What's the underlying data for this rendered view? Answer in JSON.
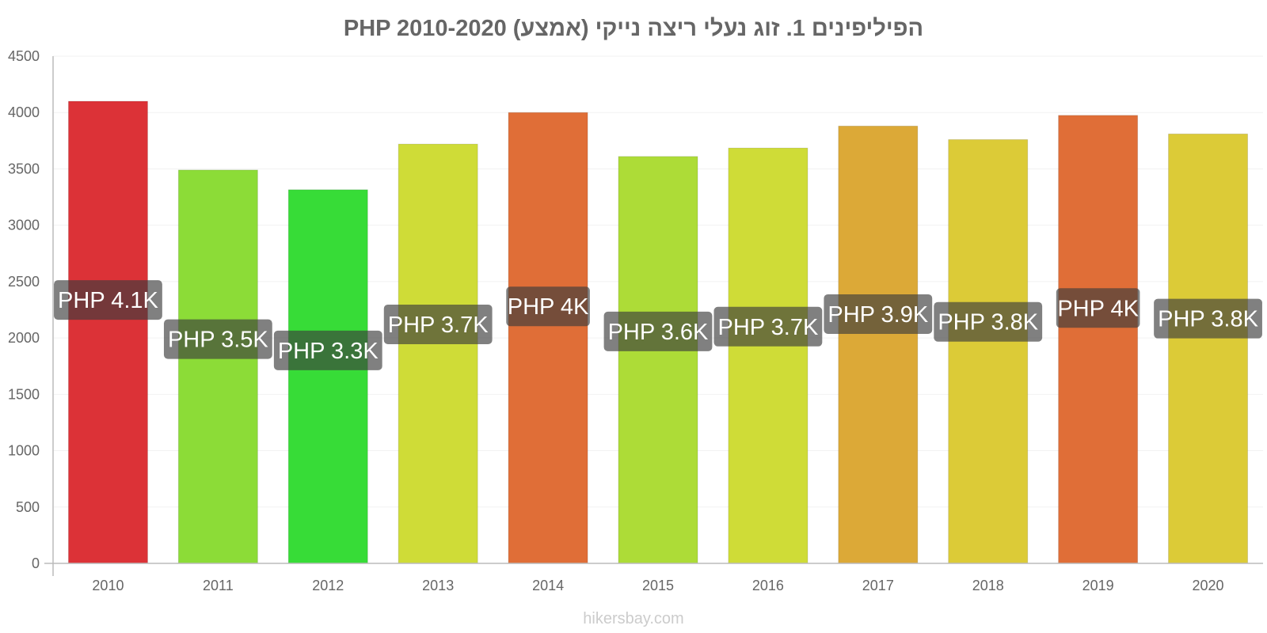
{
  "chart_data": {
    "type": "bar",
    "title": "הפיליפינים 1. זוג נעלי ריצה נייקי (אמצע) PHP 2010-2020",
    "xlabel": "",
    "ylabel": "",
    "categories": [
      "2010",
      "2011",
      "2012",
      "2013",
      "2014",
      "2015",
      "2016",
      "2017",
      "2018",
      "2019",
      "2020"
    ],
    "values": [
      4100,
      3490,
      3315,
      3720,
      4000,
      3610,
      3685,
      3880,
      3760,
      3975,
      3810
    ],
    "data_labels": [
      "PHP 4.1K",
      "PHP 3.5K",
      "PHP 3.3K",
      "PHP 3.7K",
      "PHP 4K",
      "PHP 3.6K",
      "PHP 3.7K",
      "PHP 3.9K",
      "PHP 3.8K",
      "PHP 4K",
      "PHP 3.8K"
    ],
    "bar_colors": [
      "#dc3237",
      "#8cdc37",
      "#37dc37",
      "#cfdc37",
      "#e06e37",
      "#addc37",
      "#cfdc37",
      "#dca937",
      "#dccb37",
      "#e06e37",
      "#dccb37"
    ],
    "ylim": [
      0,
      4500
    ],
    "yticks": [
      0,
      500,
      1000,
      1500,
      2000,
      2500,
      3000,
      3500,
      4000,
      4500
    ],
    "grid": true,
    "legend": "none"
  },
  "footer": {
    "source": "hikersbay.com"
  }
}
